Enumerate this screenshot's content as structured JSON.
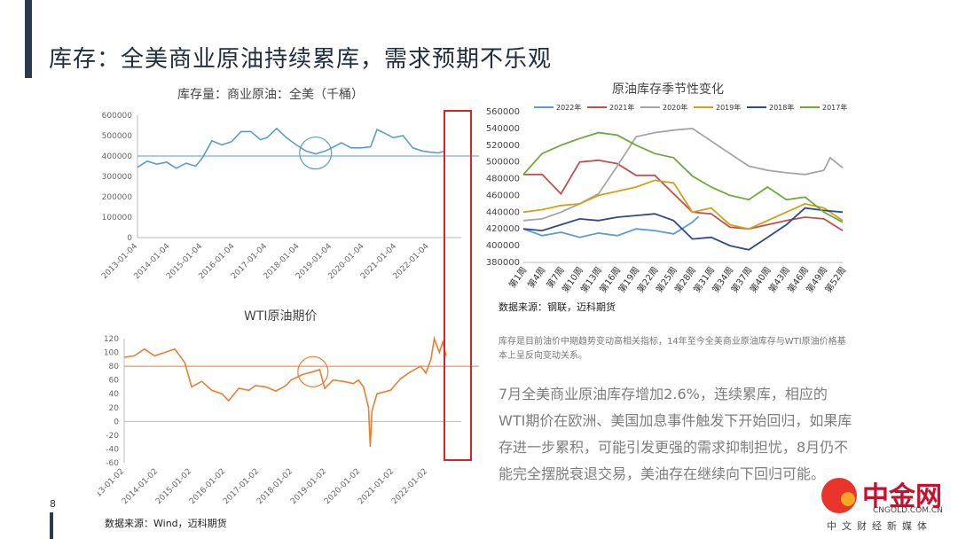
{
  "page": {
    "title": "库存：全美商业原油持续累库，需求预期不乐观",
    "page_number": "8",
    "source_left": "数据来源：Wind，迈科期货",
    "source_right": "数据来源：钢联，迈科期货",
    "small_note": "库存是目前油价中期趋势变动高相关指标，14年至今全美商业原油库存与WTI原油价格基本上呈反向变动关系。",
    "body_text": "7月全美商业原油库存增加2.6%，连续累库，相应的WTI期价在欧洲、美国加息事件触发下开始回归，如果库存进一步累积，可能引发更强的需求抑制担忧，8月仍不能完全摆脱衰退交易，美油存在继续向下回归可能。",
    "logo_text": "中金网",
    "logo_url": "CNGOLD.COM.CN",
    "logo_tagline": "中文财经新媒体",
    "colors": {
      "accent": "#2d3a4e",
      "highlight": "#d9232a"
    }
  },
  "chart_data": [
    {
      "type": "line",
      "title": "库存量：商业原油：全美（千桶）",
      "x_ticks": [
        "2013-01-04",
        "2014-01-04",
        "2015-01-04",
        "2016-01-04",
        "2017-01-04",
        "2018-01-04",
        "2019-01-04",
        "2020-01-04",
        "2021-01-04",
        "2022-01-04"
      ],
      "y_ticks": [
        "0",
        "100000",
        "200000",
        "300000",
        "400000",
        "500000",
        "600000"
      ],
      "ylim": [
        0,
        600000
      ],
      "xlim": [
        2013.0,
        2023.0
      ],
      "reference_line": 400000,
      "color": "#5b9bd5",
      "series": [
        {
          "values": [
            [
              2013.0,
              345000
            ],
            [
              2013.3,
              375000
            ],
            [
              2013.6,
              360000
            ],
            [
              2013.9,
              370000
            ],
            [
              2014.2,
              340000
            ],
            [
              2014.5,
              365000
            ],
            [
              2014.8,
              350000
            ],
            [
              2015.0,
              390000
            ],
            [
              2015.3,
              475000
            ],
            [
              2015.6,
              455000
            ],
            [
              2015.9,
              470000
            ],
            [
              2016.2,
              520000
            ],
            [
              2016.5,
              520000
            ],
            [
              2016.8,
              480000
            ],
            [
              2017.0,
              490000
            ],
            [
              2017.3,
              535000
            ],
            [
              2017.6,
              490000
            ],
            [
              2017.9,
              455000
            ],
            [
              2018.2,
              425000
            ],
            [
              2018.5,
              410000
            ],
            [
              2018.8,
              425000
            ],
            [
              2019.0,
              440000
            ],
            [
              2019.3,
              465000
            ],
            [
              2019.6,
              440000
            ],
            [
              2019.9,
              440000
            ],
            [
              2020.2,
              445000
            ],
            [
              2020.4,
              530000
            ],
            [
              2020.6,
              515000
            ],
            [
              2020.9,
              490000
            ],
            [
              2021.2,
              500000
            ],
            [
              2021.5,
              440000
            ],
            [
              2021.8,
              425000
            ],
            [
              2022.0,
              420000
            ],
            [
              2022.3,
              415000
            ],
            [
              2022.5,
              425000
            ]
          ]
        }
      ]
    },
    {
      "type": "line",
      "title": "WTI原油期价",
      "x_ticks": [
        "2013-01-02",
        "2014-01-02",
        "2015-01-02",
        "2016-01-02",
        "2017-01-02",
        "2018-01-02",
        "2019-01-02",
        "2020-01-02",
        "2021-01-02",
        "2022-01-02"
      ],
      "y_ticks": [
        "-60",
        "-40",
        "-20",
        "0",
        "20",
        "40",
        "60",
        "80",
        "100",
        "120"
      ],
      "ylim": [
        -60,
        120
      ],
      "xlim": [
        2013.0,
        2023.0
      ],
      "reference_line": 80,
      "color": "#ed7d31",
      "series": [
        {
          "values": [
            [
              2013.0,
              93
            ],
            [
              2013.3,
              95
            ],
            [
              2013.6,
              105
            ],
            [
              2013.9,
              95
            ],
            [
              2014.2,
              100
            ],
            [
              2014.5,
              105
            ],
            [
              2014.8,
              85
            ],
            [
              2015.0,
              50
            ],
            [
              2015.3,
              58
            ],
            [
              2015.6,
              45
            ],
            [
              2015.9,
              40
            ],
            [
              2016.1,
              30
            ],
            [
              2016.4,
              48
            ],
            [
              2016.7,
              45
            ],
            [
              2016.9,
              52
            ],
            [
              2017.2,
              50
            ],
            [
              2017.5,
              44
            ],
            [
              2017.8,
              52
            ],
            [
              2017.95,
              60
            ],
            [
              2018.3,
              68
            ],
            [
              2018.6,
              72
            ],
            [
              2018.8,
              75
            ],
            [
              2018.95,
              48
            ],
            [
              2019.2,
              60
            ],
            [
              2019.5,
              58
            ],
            [
              2019.8,
              55
            ],
            [
              2019.95,
              60
            ],
            [
              2020.1,
              50
            ],
            [
              2020.25,
              20
            ],
            [
              2020.3,
              -37
            ],
            [
              2020.35,
              15
            ],
            [
              2020.5,
              40
            ],
            [
              2020.9,
              45
            ],
            [
              2021.2,
              62
            ],
            [
              2021.5,
              72
            ],
            [
              2021.8,
              80
            ],
            [
              2021.95,
              70
            ],
            [
              2022.1,
              90
            ],
            [
              2022.2,
              120
            ],
            [
              2022.35,
              100
            ],
            [
              2022.45,
              115
            ],
            [
              2022.55,
              95
            ]
          ]
        }
      ]
    },
    {
      "type": "line",
      "title": "原油库存季节性变化",
      "x_ticks": [
        "第1周",
        "第4周",
        "第7周",
        "第10周",
        "第13周",
        "第16周",
        "第19周",
        "第22周",
        "第25周",
        "第28周",
        "第31周",
        "第34周",
        "第37周",
        "第40周",
        "第43周",
        "第46周",
        "第49周",
        "第52周"
      ],
      "y_ticks": [
        "380000",
        "400000",
        "420000",
        "440000",
        "460000",
        "480000",
        "500000",
        "520000",
        "540000",
        "560000"
      ],
      "ylim": [
        380000,
        560000
      ],
      "xlim": [
        1,
        52
      ],
      "legend_position": "top",
      "series": [
        {
          "name": "2022年",
          "color": "#5b9bd5",
          "values": [
            [
              1,
              420000
            ],
            [
              4,
              412000
            ],
            [
              7,
              416000
            ],
            [
              10,
              410000
            ],
            [
              13,
              415000
            ],
            [
              16,
              412000
            ],
            [
              19,
              420000
            ],
            [
              22,
              418000
            ],
            [
              25,
              414000
            ],
            [
              28,
              428000
            ],
            [
              29,
              435000
            ]
          ]
        },
        {
          "name": "2021年",
          "color": "#c0504d",
          "values": [
            [
              1,
              485000
            ],
            [
              4,
              485000
            ],
            [
              7,
              462000
            ],
            [
              10,
              500000
            ],
            [
              13,
              502000
            ],
            [
              16,
              498000
            ],
            [
              19,
              484000
            ],
            [
              22,
              484000
            ],
            [
              25,
              462000
            ],
            [
              28,
              440000
            ],
            [
              31,
              438000
            ],
            [
              34,
              422000
            ],
            [
              37,
              420000
            ],
            [
              40,
              425000
            ],
            [
              43,
              430000
            ],
            [
              46,
              434000
            ],
            [
              49,
              432000
            ],
            [
              52,
              418000
            ]
          ]
        },
        {
          "name": "2020年",
          "color": "#a5a5a5",
          "values": [
            [
              1,
              430000
            ],
            [
              4,
              432000
            ],
            [
              7,
              440000
            ],
            [
              10,
              450000
            ],
            [
              13,
              462000
            ],
            [
              16,
              495000
            ],
            [
              19,
              530000
            ],
            [
              22,
              535000
            ],
            [
              25,
              538000
            ],
            [
              28,
              540000
            ],
            [
              31,
              525000
            ],
            [
              34,
              510000
            ],
            [
              37,
              495000
            ],
            [
              40,
              490000
            ],
            [
              43,
              487000
            ],
            [
              46,
              485000
            ],
            [
              49,
              490000
            ],
            [
              50,
              505000
            ],
            [
              52,
              493000
            ]
          ]
        },
        {
          "name": "2019年",
          "color": "#d4a017",
          "values": [
            [
              1,
              440000
            ],
            [
              4,
              443000
            ],
            [
              7,
              448000
            ],
            [
              10,
              450000
            ],
            [
              13,
              460000
            ],
            [
              16,
              465000
            ],
            [
              19,
              470000
            ],
            [
              22,
              478000
            ],
            [
              25,
              475000
            ],
            [
              28,
              440000
            ],
            [
              31,
              445000
            ],
            [
              34,
              425000
            ],
            [
              37,
              420000
            ],
            [
              40,
              430000
            ],
            [
              43,
              440000
            ],
            [
              46,
              450000
            ],
            [
              49,
              445000
            ],
            [
              52,
              430000
            ]
          ]
        },
        {
          "name": "2018年",
          "color": "#2e4a8c",
          "values": [
            [
              1,
              420000
            ],
            [
              4,
              418000
            ],
            [
              7,
              425000
            ],
            [
              10,
              432000
            ],
            [
              13,
              430000
            ],
            [
              16,
              434000
            ],
            [
              19,
              436000
            ],
            [
              22,
              438000
            ],
            [
              25,
              430000
            ],
            [
              28,
              408000
            ],
            [
              31,
              410000
            ],
            [
              34,
              400000
            ],
            [
              37,
              395000
            ],
            [
              40,
              410000
            ],
            [
              43,
              425000
            ],
            [
              46,
              445000
            ],
            [
              49,
              442000
            ],
            [
              52,
              440000
            ]
          ]
        },
        {
          "name": "2017年",
          "color": "#70a83b",
          "values": [
            [
              1,
              485000
            ],
            [
              4,
              510000
            ],
            [
              7,
              520000
            ],
            [
              10,
              528000
            ],
            [
              13,
              535000
            ],
            [
              16,
              532000
            ],
            [
              19,
              520000
            ],
            [
              22,
              510000
            ],
            [
              25,
              505000
            ],
            [
              28,
              483000
            ],
            [
              31,
              470000
            ],
            [
              34,
              460000
            ],
            [
              37,
              455000
            ],
            [
              40,
              470000
            ],
            [
              43,
              455000
            ],
            [
              46,
              458000
            ],
            [
              49,
              440000
            ],
            [
              52,
              428000
            ]
          ]
        }
      ]
    }
  ]
}
